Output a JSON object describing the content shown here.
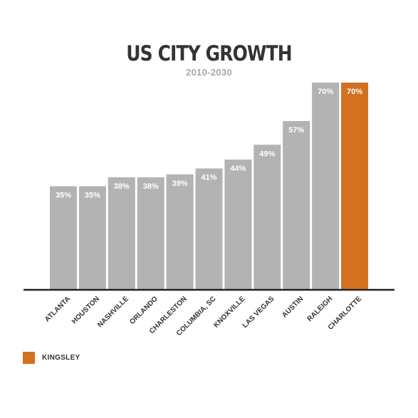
{
  "chart_data": {
    "type": "bar",
    "title": "US CITY GROWTH",
    "subtitle": "2010-2030",
    "xlabel": "",
    "ylabel": "",
    "categories": [
      "ATLANTA",
      "HOUSTON",
      "NASHVILLE",
      "ORLANDO",
      "CHARLESTON",
      "COLUMBIA, SC",
      "KNOXVILLE",
      "LAS VEGAS",
      "AUSTIN",
      "RALEIGH",
      "CHARLOTTE"
    ],
    "values": [
      35,
      35,
      38,
      38,
      39,
      41,
      44,
      49,
      57,
      70,
      70
    ],
    "value_labels": [
      "35%",
      "35%",
      "38%",
      "38%",
      "39%",
      "41%",
      "44%",
      "49%",
      "57%",
      "70%",
      "70%"
    ],
    "highlight_index": 10,
    "ylim": [
      0,
      70
    ],
    "grid": false,
    "legend": {
      "position": "bottom-left",
      "entries": [
        {
          "name": "KINGSLEY",
          "color": "#d2711f"
        }
      ]
    },
    "colors": {
      "default": "#b3b3b3",
      "highlight": "#d2711f",
      "axis": "#222222",
      "bar_label": "#ffffff"
    }
  }
}
